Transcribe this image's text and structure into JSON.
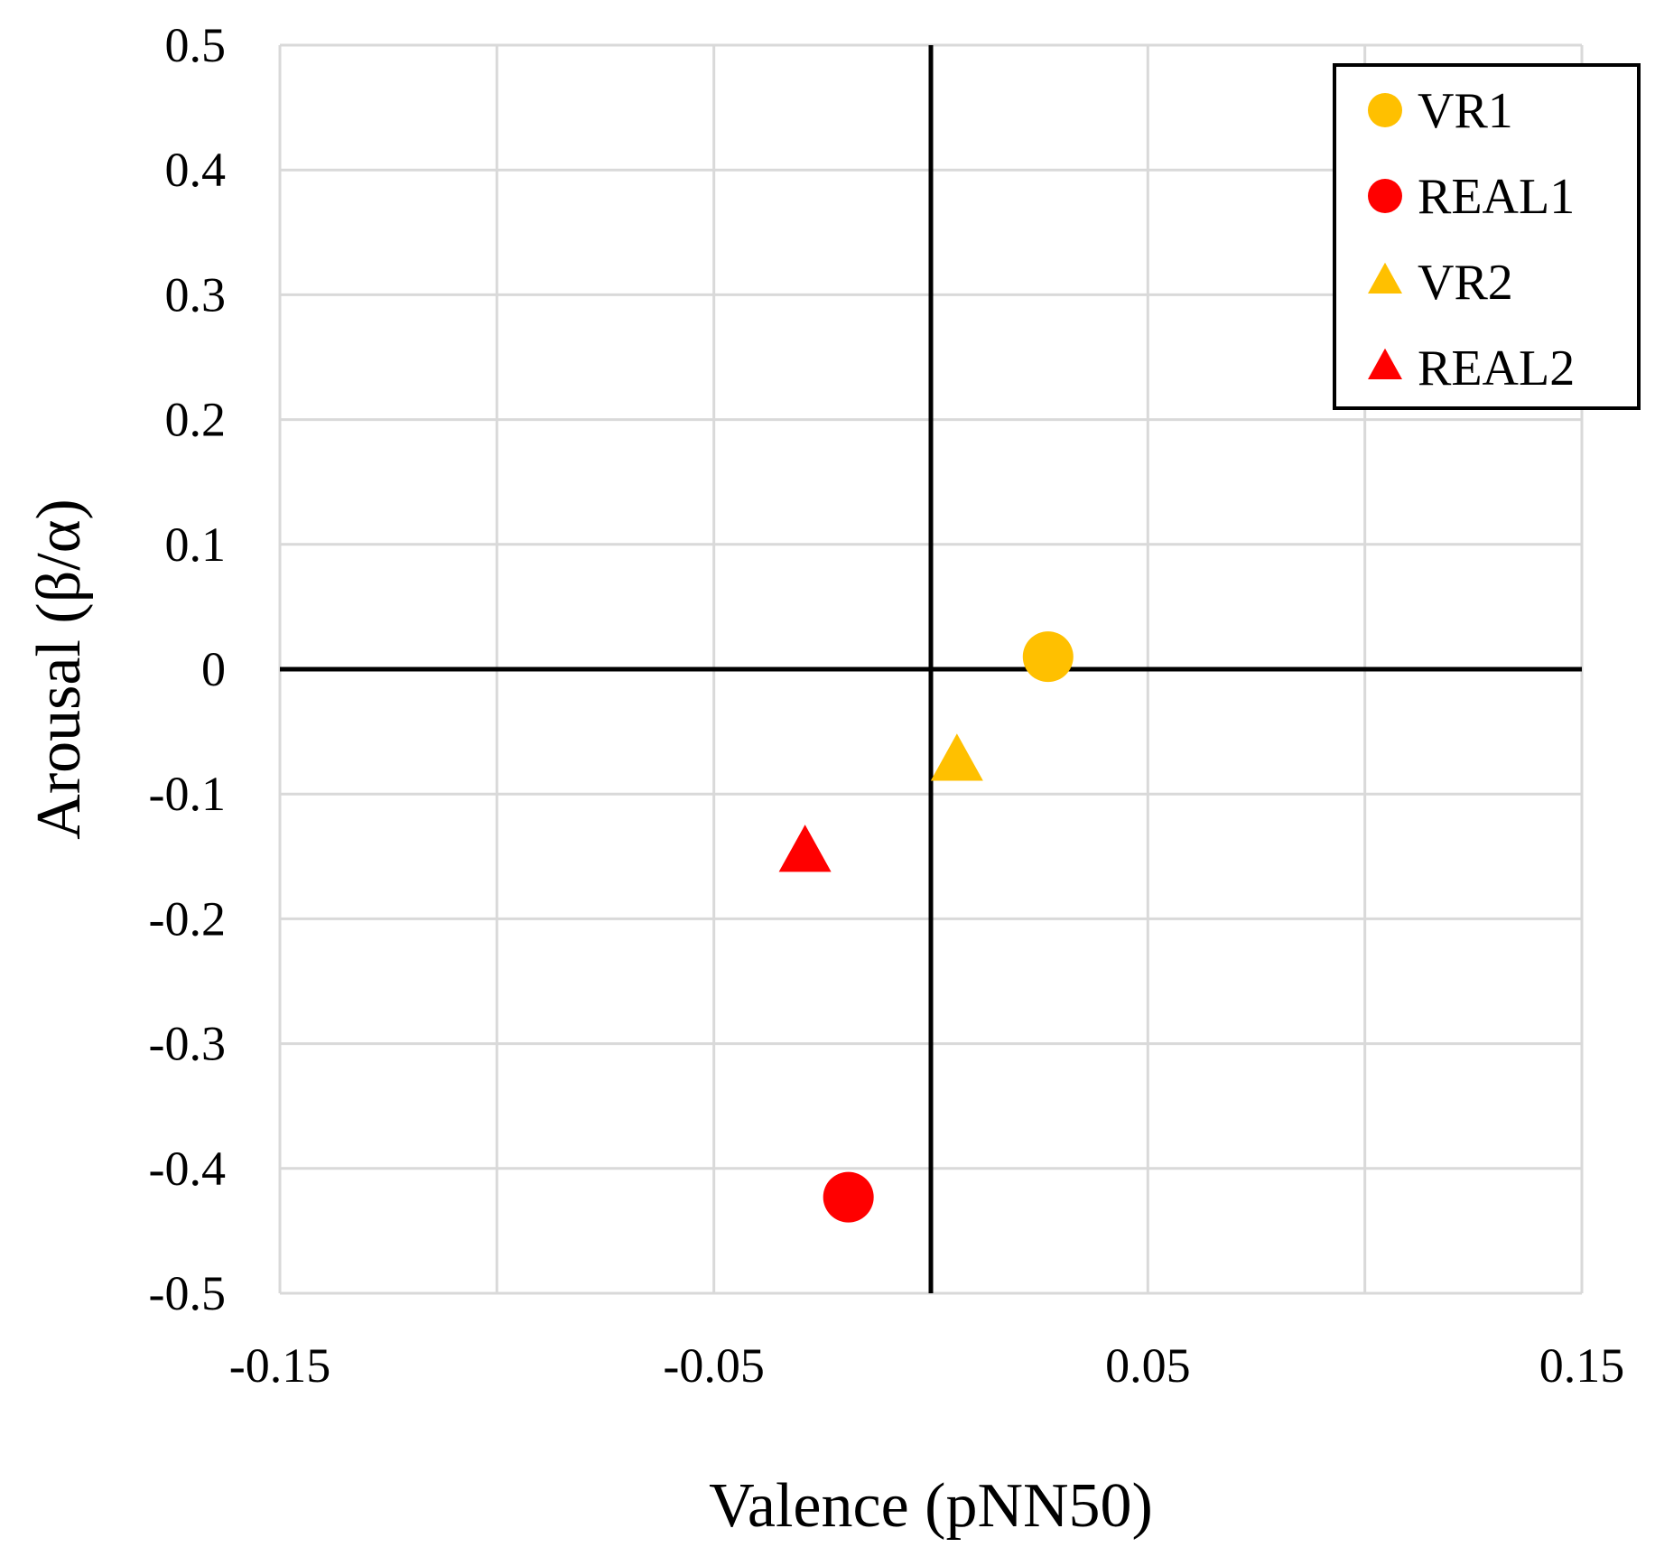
{
  "chart_data": {
    "type": "scatter",
    "title": "",
    "xlabel": "Valence (pNN50)",
    "ylabel": "Arousal (β/α)",
    "xlim": [
      -0.15,
      0.15
    ],
    "ylim": [
      -0.5,
      0.5
    ],
    "x_ticks": [
      -0.15,
      -0.05,
      0.05,
      0.15
    ],
    "x_tick_labels": [
      "-0.15",
      "-0.05",
      "0.05",
      "0.15"
    ],
    "y_ticks": [
      0.5,
      0.4,
      0.3,
      0.2,
      0.1,
      0,
      -0.1,
      -0.2,
      -0.3,
      -0.4,
      -0.5
    ],
    "y_tick_labels": [
      "0.5",
      "0.4",
      "0.3",
      "0.2",
      "0.1",
      "0",
      "-0.1",
      "-0.2",
      "-0.3",
      "-0.4",
      "-0.5"
    ],
    "grid": true,
    "x_grid_step": 0.05,
    "y_grid_step": 0.1,
    "zero_axes": true,
    "legend_position": "top-right",
    "series": [
      {
        "name": "VR1",
        "marker": "circle",
        "color": "#FFC000",
        "x": [
          0.027
        ],
        "y": [
          0.01
        ]
      },
      {
        "name": "REAL1",
        "marker": "circle",
        "color": "#FF0000",
        "x": [
          -0.019
        ],
        "y": [
          -0.423
        ]
      },
      {
        "name": "VR2",
        "marker": "triangle",
        "color": "#FFC000",
        "x": [
          0.006
        ],
        "y": [
          -0.075
        ]
      },
      {
        "name": "REAL2",
        "marker": "triangle",
        "color": "#FF0000",
        "x": [
          -0.029
        ],
        "y": [
          -0.148
        ]
      }
    ]
  }
}
